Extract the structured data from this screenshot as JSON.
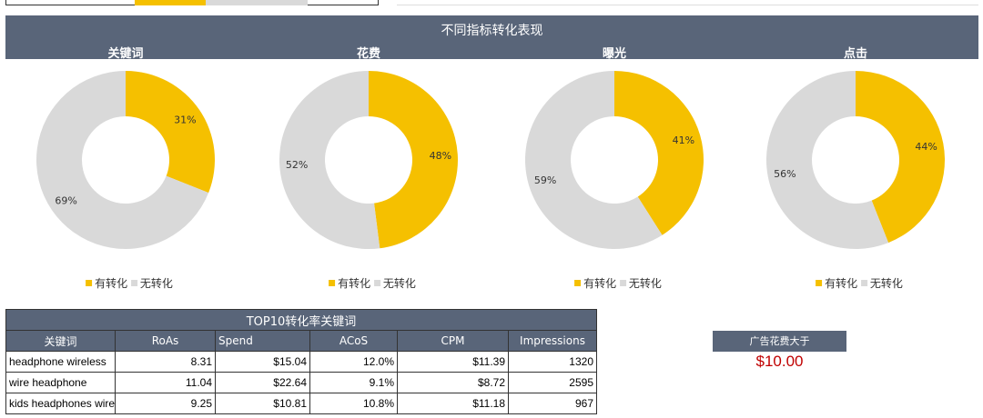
{
  "colors": {
    "converted": "#f5c000",
    "not_converted": "#d9d9d9",
    "header": "#596579",
    "filter_value": "#c00000"
  },
  "header": {
    "title": "不同指标转化表现"
  },
  "legend": {
    "converted": "有转化",
    "not_converted": "无转化"
  },
  "chart_data": [
    {
      "type": "pie",
      "title": "关键词",
      "categories": [
        "有转化",
        "无转化"
      ],
      "values": [
        31,
        69
      ],
      "labels": [
        "31%",
        "69%"
      ]
    },
    {
      "type": "pie",
      "title": "花费",
      "categories": [
        "有转化",
        "无转化"
      ],
      "values": [
        48,
        52
      ],
      "labels": [
        "48%",
        "52%"
      ]
    },
    {
      "type": "pie",
      "title": "曝光",
      "categories": [
        "有转化",
        "无转化"
      ],
      "values": [
        41,
        59
      ],
      "labels": [
        "41%",
        "59%"
      ]
    },
    {
      "type": "pie",
      "title": "点击",
      "categories": [
        "有转化",
        "无转化"
      ],
      "values": [
        44,
        56
      ],
      "labels": [
        "44%",
        "56%"
      ]
    }
  ],
  "table": {
    "title": "TOP10转化率关键词",
    "columns": [
      "关键词",
      "RoAs",
      "Spend",
      "ACoS",
      "CPM",
      "Impressions"
    ],
    "rows": [
      [
        "headphone wireless",
        "8.31",
        "$15.04",
        "12.0%",
        "$11.39",
        "1320"
      ],
      [
        "wire headphone",
        "11.04",
        "$22.64",
        "9.1%",
        "$8.72",
        "2595"
      ],
      [
        "kids headphones wired",
        "9.25",
        "$10.81",
        "10.8%",
        "$11.18",
        "967"
      ]
    ]
  },
  "filter": {
    "label": "广告花费大于",
    "value": "$10.00"
  }
}
